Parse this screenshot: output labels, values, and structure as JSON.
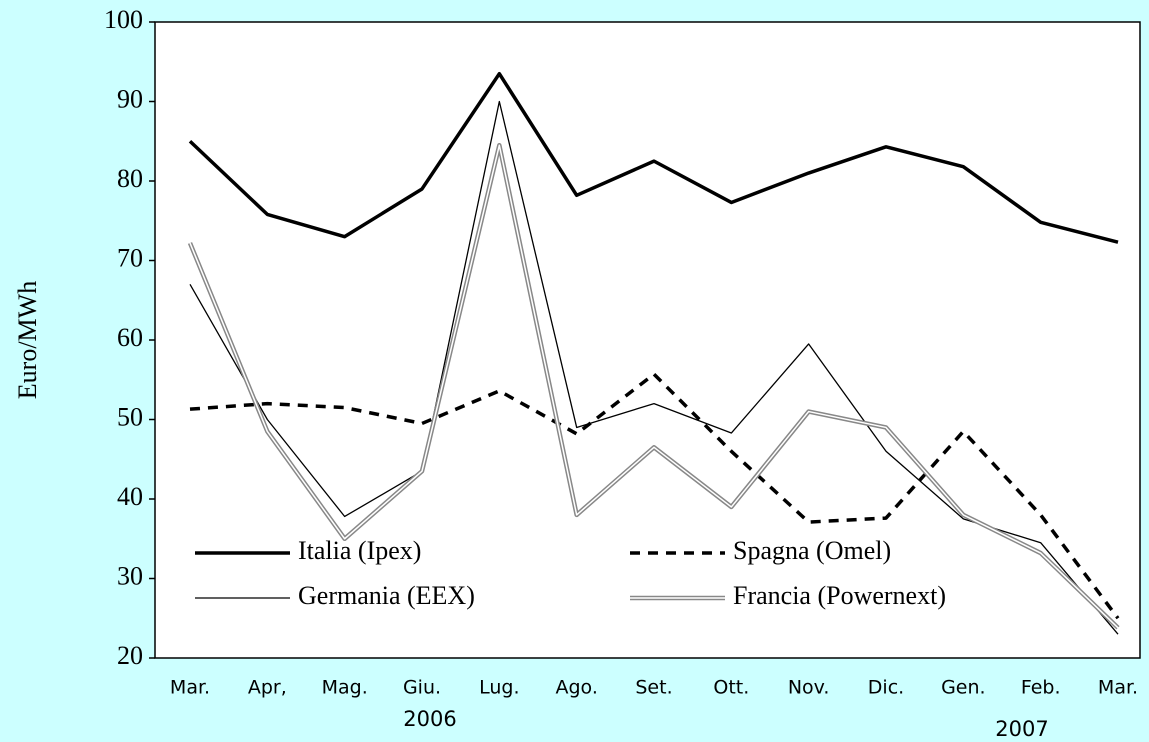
{
  "chart_data": {
    "type": "line",
    "ylabel": "Euro/MWh",
    "categories": [
      "Mar.",
      "Apr,",
      "Mag.",
      "Giu.",
      "Lug.",
      "Ago.",
      "Set.",
      "Ott.",
      "Nov.",
      "Dic.",
      "Gen.",
      "Feb.",
      "Mar."
    ],
    "annotations": [
      "2006",
      "2007"
    ],
    "ylim": [
      20,
      100
    ],
    "yticks": [
      20,
      30,
      40,
      50,
      60,
      70,
      80,
      90,
      100
    ],
    "series": [
      {
        "name": "Italia (Ipex)",
        "color": "#000000",
        "style": "bold",
        "values": [
          85,
          75.8,
          73,
          79,
          93.5,
          78.2,
          82.5,
          77.3,
          81,
          84.3,
          81.8,
          74.8,
          72.3
        ]
      },
      {
        "name": "Spagna (Omel)",
        "color": "#000000",
        "style": "dashed",
        "values": [
          51.3,
          52,
          51.5,
          49.5,
          53.6,
          48.2,
          55.7,
          46,
          37.1,
          37.6,
          48.5,
          38,
          25
        ]
      },
      {
        "name": "Germania (EEX)",
        "color": "#000000",
        "style": "thin",
        "values": [
          67,
          50,
          37.8,
          43.5,
          90,
          49,
          52,
          48.3,
          59.5,
          46,
          37.5,
          34.5,
          23
        ]
      },
      {
        "name": "Francia (Powernext)",
        "color": "#888888",
        "style": "double",
        "values": [
          72.2,
          48.5,
          35,
          43.5,
          84.5,
          38,
          46.5,
          39,
          51,
          49,
          38,
          33.2,
          23.8
        ]
      }
    ]
  }
}
